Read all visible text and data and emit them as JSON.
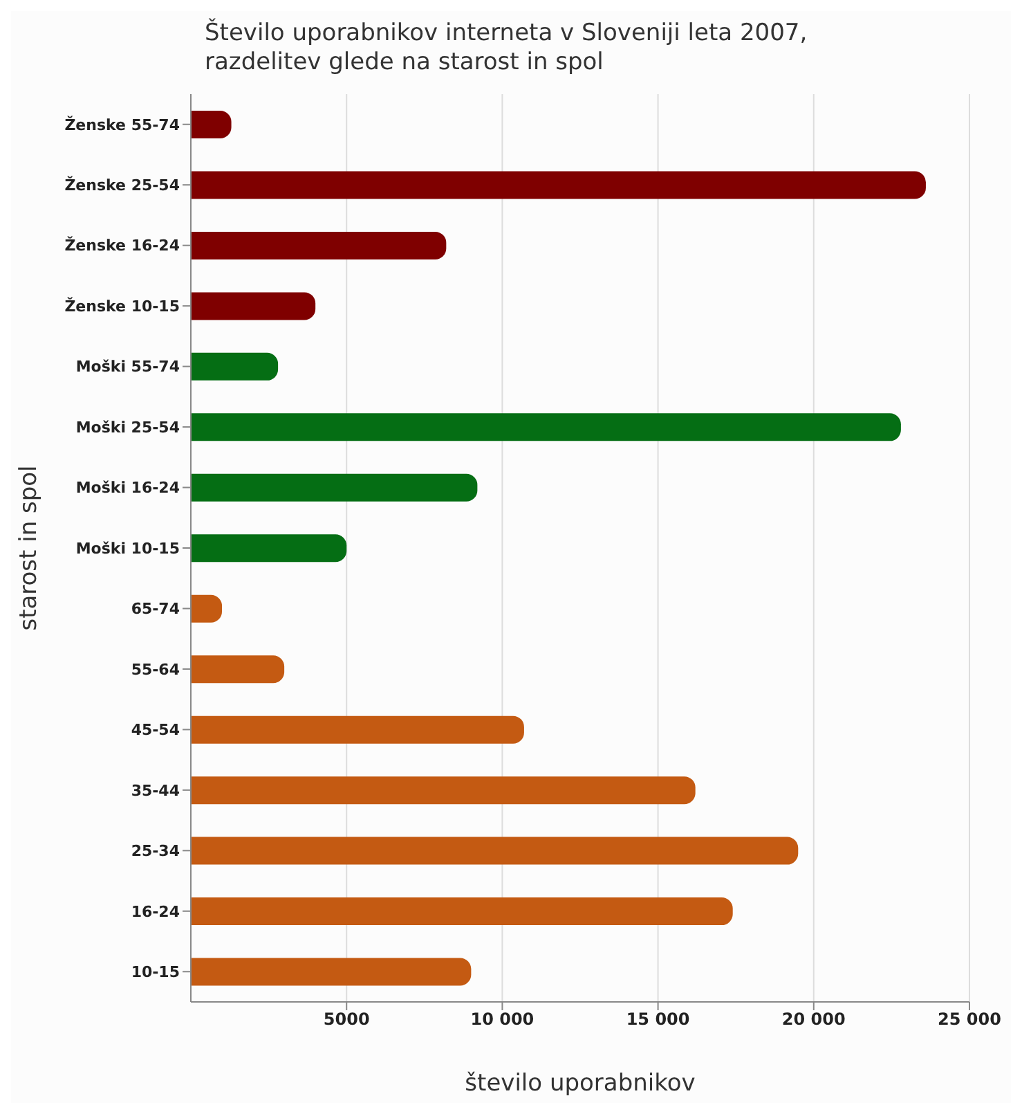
{
  "chart_data": {
    "type": "bar",
    "orientation": "horizontal",
    "title": "Število uporabnikov interneta v Sloveniji leta 2007, razdelitev glede na starost in spol",
    "xlabel": "število uporabnikov",
    "ylabel": "starost in spol",
    "categories": [
      "Ženske 55-74",
      "Ženske 25-54",
      "Ženske 16-24",
      "Ženske 10-15",
      "Moški 55-74",
      "Moški 25-54",
      "Moški 16-24",
      "Moški 10-15",
      "65-74",
      "55-64",
      "45-54",
      "35-44",
      "25-34",
      "16-24",
      "10-15"
    ],
    "values": [
      1300,
      23600,
      8200,
      4000,
      2800,
      22800,
      9200,
      5000,
      1000,
      3000,
      10700,
      16200,
      19500,
      17400,
      9000
    ],
    "colors": [
      "#7f0000",
      "#7f0000",
      "#7f0000",
      "#7f0000",
      "#056e14",
      "#056e14",
      "#056e14",
      "#056e14",
      "#c45a12",
      "#c45a12",
      "#c45a12",
      "#c45a12",
      "#c45a12",
      "#c45a12",
      "#c45a12"
    ],
    "xlim": [
      0,
      25000
    ],
    "xticks": [
      5000,
      {
        "value": 10000,
        "label": "10 000"
      },
      {
        "value": 15000,
        "label": "15 000"
      },
      {
        "value": 20000,
        "label": "20 000"
      },
      {
        "value": 25000,
        "label": "25 000"
      }
    ],
    "grid": "x"
  }
}
